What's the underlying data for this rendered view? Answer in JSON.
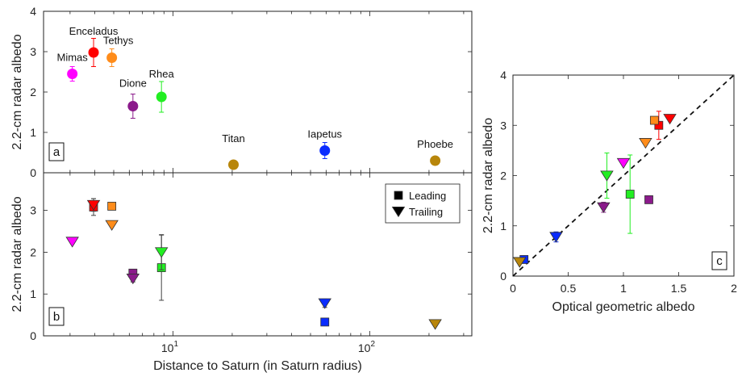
{
  "chart_data": [
    {
      "panel": "a",
      "type": "scatter",
      "ylabel": "2.2-cm radar albedo",
      "xscale": "log",
      "xlim": [
        2.2,
        330
      ],
      "ylim": [
        0,
        4
      ],
      "yticks": [
        "0",
        "1",
        "2",
        "3",
        "4"
      ],
      "panel_label": "a",
      "points": [
        {
          "name": "Mimas",
          "x": 3.08,
          "y": 2.45,
          "err": 0.18,
          "color": "#ff00ff"
        },
        {
          "name": "Enceladus",
          "x": 3.95,
          "y": 2.98,
          "err": 0.35,
          "color": "#ff0000"
        },
        {
          "name": "Tethys",
          "x": 4.89,
          "y": 2.85,
          "err": 0.22,
          "color": "#ff8c1a"
        },
        {
          "name": "Dione",
          "x": 6.26,
          "y": 1.65,
          "err": 0.3,
          "color": "#8b1a8b"
        },
        {
          "name": "Rhea",
          "x": 8.74,
          "y": 1.88,
          "err": 0.38,
          "color": "#22ee22"
        },
        {
          "name": "Titan",
          "x": 20.3,
          "y": 0.2,
          "err": 0,
          "color": "#b8860b"
        },
        {
          "name": "Iapetus",
          "x": 59.1,
          "y": 0.55,
          "err": 0.2,
          "color": "#0a2cff"
        },
        {
          "name": "Phoebe",
          "x": 215,
          "y": 0.3,
          "err": 0,
          "color": "#b8860b"
        }
      ]
    },
    {
      "panel": "b",
      "type": "scatter",
      "xlabel": "Distance to Saturn (in Saturn radius)",
      "ylabel": "2.2-cm radar albedo",
      "xscale": "log",
      "xlim": [
        2.2,
        330
      ],
      "ylim": [
        0,
        3.9
      ],
      "yticks": [
        "0",
        "1",
        "2",
        "3"
      ],
      "xticks": [
        {
          "base": "10",
          "exp": "1",
          "value": 10
        },
        {
          "base": "10",
          "exp": "2",
          "value": 100
        }
      ],
      "panel_label": "b",
      "legend": {
        "position": "top-right",
        "entries": [
          "Leading",
          "Trailing"
        ]
      },
      "series": [
        {
          "name": "Leading",
          "marker": "square",
          "points": [
            {
              "x": 3.95,
              "y": 3.08,
              "err": 0.2,
              "color": "#ff0000"
            },
            {
              "x": 4.89,
              "y": 3.1,
              "err": 0,
              "color": "#ff8c1a"
            },
            {
              "x": 6.26,
              "y": 1.5,
              "err": 0,
              "color": "#8b1a8b"
            },
            {
              "x": 8.74,
              "y": 1.63,
              "err": 0.78,
              "color": "#22ee22"
            },
            {
              "x": 59.1,
              "y": 0.33,
              "err": 0,
              "color": "#0a2cff"
            }
          ]
        },
        {
          "name": "Trailing",
          "marker": "triangle-down",
          "points": [
            {
              "x": 3.08,
              "y": 2.25,
              "err": 0,
              "color": "#ff00ff"
            },
            {
              "x": 3.95,
              "y": 3.13,
              "err": 0.15,
              "color": "#ff0000"
            },
            {
              "x": 4.89,
              "y": 2.65,
              "err": 0,
              "color": "#ff8c1a"
            },
            {
              "x": 6.26,
              "y": 1.37,
              "err": 0.08,
              "color": "#8b1a8b"
            },
            {
              "x": 8.74,
              "y": 2.0,
              "err": 0.42,
              "color": "#22ee22"
            },
            {
              "x": 59.1,
              "y": 0.78,
              "err": 0.1,
              "color": "#0a2cff"
            },
            {
              "x": 215,
              "y": 0.28,
              "err": 0,
              "color": "#b8860b"
            }
          ]
        }
      ]
    },
    {
      "panel": "c",
      "type": "scatter",
      "xlabel": "Optical geometric albedo",
      "ylabel": "2.2-cm radar albedo",
      "xlim": [
        0,
        2
      ],
      "ylim": [
        0,
        4
      ],
      "xticks": [
        "0",
        "0.5",
        "1",
        "1.5",
        "2"
      ],
      "yticks": [
        "0",
        "1",
        "2",
        "3",
        "4"
      ],
      "panel_label": "c",
      "reference_line": "y = 2x (dashed)",
      "series": [
        {
          "name": "Leading",
          "marker": "square",
          "points": [
            {
              "x": 1.32,
              "y": 3.0,
              "err": 0.28,
              "color": "#ff0000"
            },
            {
              "x": 1.28,
              "y": 3.1,
              "err": 0,
              "color": "#ff8c1a"
            },
            {
              "x": 1.23,
              "y": 1.52,
              "err": 0,
              "color": "#8b1a8b"
            },
            {
              "x": 1.06,
              "y": 1.63,
              "err": 0.78,
              "color": "#22ee22"
            },
            {
              "x": 0.1,
              "y": 0.33,
              "err": 0,
              "color": "#0a2cff"
            }
          ]
        },
        {
          "name": "Trailing",
          "marker": "triangle-down",
          "points": [
            {
              "x": 1.0,
              "y": 2.25,
              "err": 0,
              "color": "#ff00ff"
            },
            {
              "x": 1.42,
              "y": 3.13,
              "err": 0,
              "color": "#ff0000"
            },
            {
              "x": 1.2,
              "y": 2.65,
              "err": 0,
              "color": "#ff8c1a"
            },
            {
              "x": 0.82,
              "y": 1.37,
              "err": 0.1,
              "color": "#8b1a8b"
            },
            {
              "x": 0.85,
              "y": 2.0,
              "err": 0.45,
              "color": "#22ee22"
            },
            {
              "x": 0.39,
              "y": 0.78,
              "err": 0.1,
              "color": "#0a2cff"
            },
            {
              "x": 0.06,
              "y": 0.28,
              "err": 0,
              "color": "#b8860b"
            }
          ]
        }
      ]
    }
  ]
}
